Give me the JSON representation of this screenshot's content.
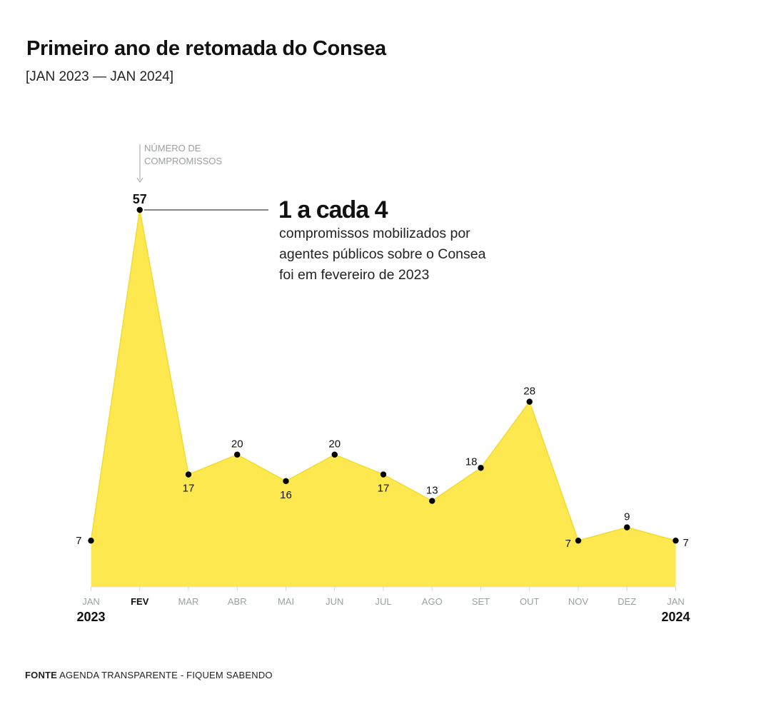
{
  "title": "Primeiro ano de retomada do Consea",
  "subtitle": "[JAN 2023 — JAN 2024]",
  "source": {
    "label": "FONTE",
    "text": "AGENDA TRANSPARENTE - FIQUEM SABENDO"
  },
  "colors": {
    "area": "#FDE84F",
    "line": "#F2DB2E",
    "point": "#000000",
    "axis_text": "#9AA0A0",
    "note_text": "#9AA0A0"
  },
  "chart_data": {
    "type": "area",
    "title": "Primeiro ano de retomada do Consea",
    "subtitle": "[JAN 2023 — JAN 2024]",
    "categories": [
      "JAN",
      "FEV",
      "MAR",
      "ABR",
      "MAI",
      "JUN",
      "JUL",
      "AGO",
      "SET",
      "OUT",
      "NOV",
      "DEZ",
      "JAN"
    ],
    "values": [
      7,
      57,
      17,
      20,
      16,
      20,
      17,
      13,
      18,
      28,
      7,
      9,
      7
    ],
    "highlight_index": 1,
    "years": [
      {
        "label": "2023",
        "index": 0
      },
      {
        "label": "2024",
        "index": 12
      }
    ],
    "y_axis_note": [
      "NÚMERO DE",
      "COMPROMISSOS"
    ],
    "ylim": [
      0,
      57
    ],
    "annotation": {
      "index": 1,
      "headline": "1 a cada 4",
      "lines": [
        "compromissos mobilizados por",
        "agentes públicos sobre o Consea",
        "foi em fevereiro de 2023"
      ]
    }
  }
}
